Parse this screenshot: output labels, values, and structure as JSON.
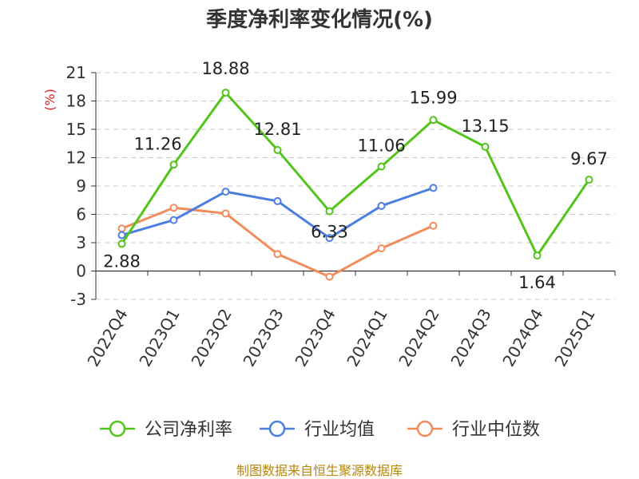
{
  "chart_data": {
    "type": "line",
    "title": "季度净利率变化情况(%)",
    "ylabel": "(%)",
    "xlabel": "",
    "categories": [
      "2022Q4",
      "2023Q1",
      "2023Q2",
      "2023Q3",
      "2023Q4",
      "2024Q1",
      "2024Q2",
      "2024Q3",
      "2024Q4",
      "2025Q1"
    ],
    "ylim": [
      -3,
      21
    ],
    "yticks": [
      -3,
      0,
      3,
      6,
      9,
      12,
      15,
      18,
      21
    ],
    "grid": true,
    "legend_position": "bottom",
    "series": [
      {
        "name": "公司净利率",
        "color": "#52c41a",
        "values": [
          2.88,
          11.26,
          18.88,
          12.81,
          6.33,
          11.06,
          15.99,
          13.15,
          1.64,
          9.67
        ],
        "labels": [
          "2.88",
          "11.26",
          "18.88",
          "12.81",
          "6.33",
          "11.06",
          "15.99",
          "13.15",
          "1.64",
          "9.67"
        ]
      },
      {
        "name": "行业均值",
        "color": "#4a7fe0",
        "values": [
          3.8,
          5.4,
          8.4,
          7.4,
          3.5,
          6.9,
          8.8,
          null,
          null,
          null
        ]
      },
      {
        "name": "行业中位数",
        "color": "#f28c5a",
        "values": [
          4.5,
          6.7,
          6.1,
          1.8,
          -0.6,
          2.4,
          4.8,
          null,
          null,
          null
        ]
      }
    ]
  },
  "source_text": "制图数据来自恒生聚源数据库"
}
